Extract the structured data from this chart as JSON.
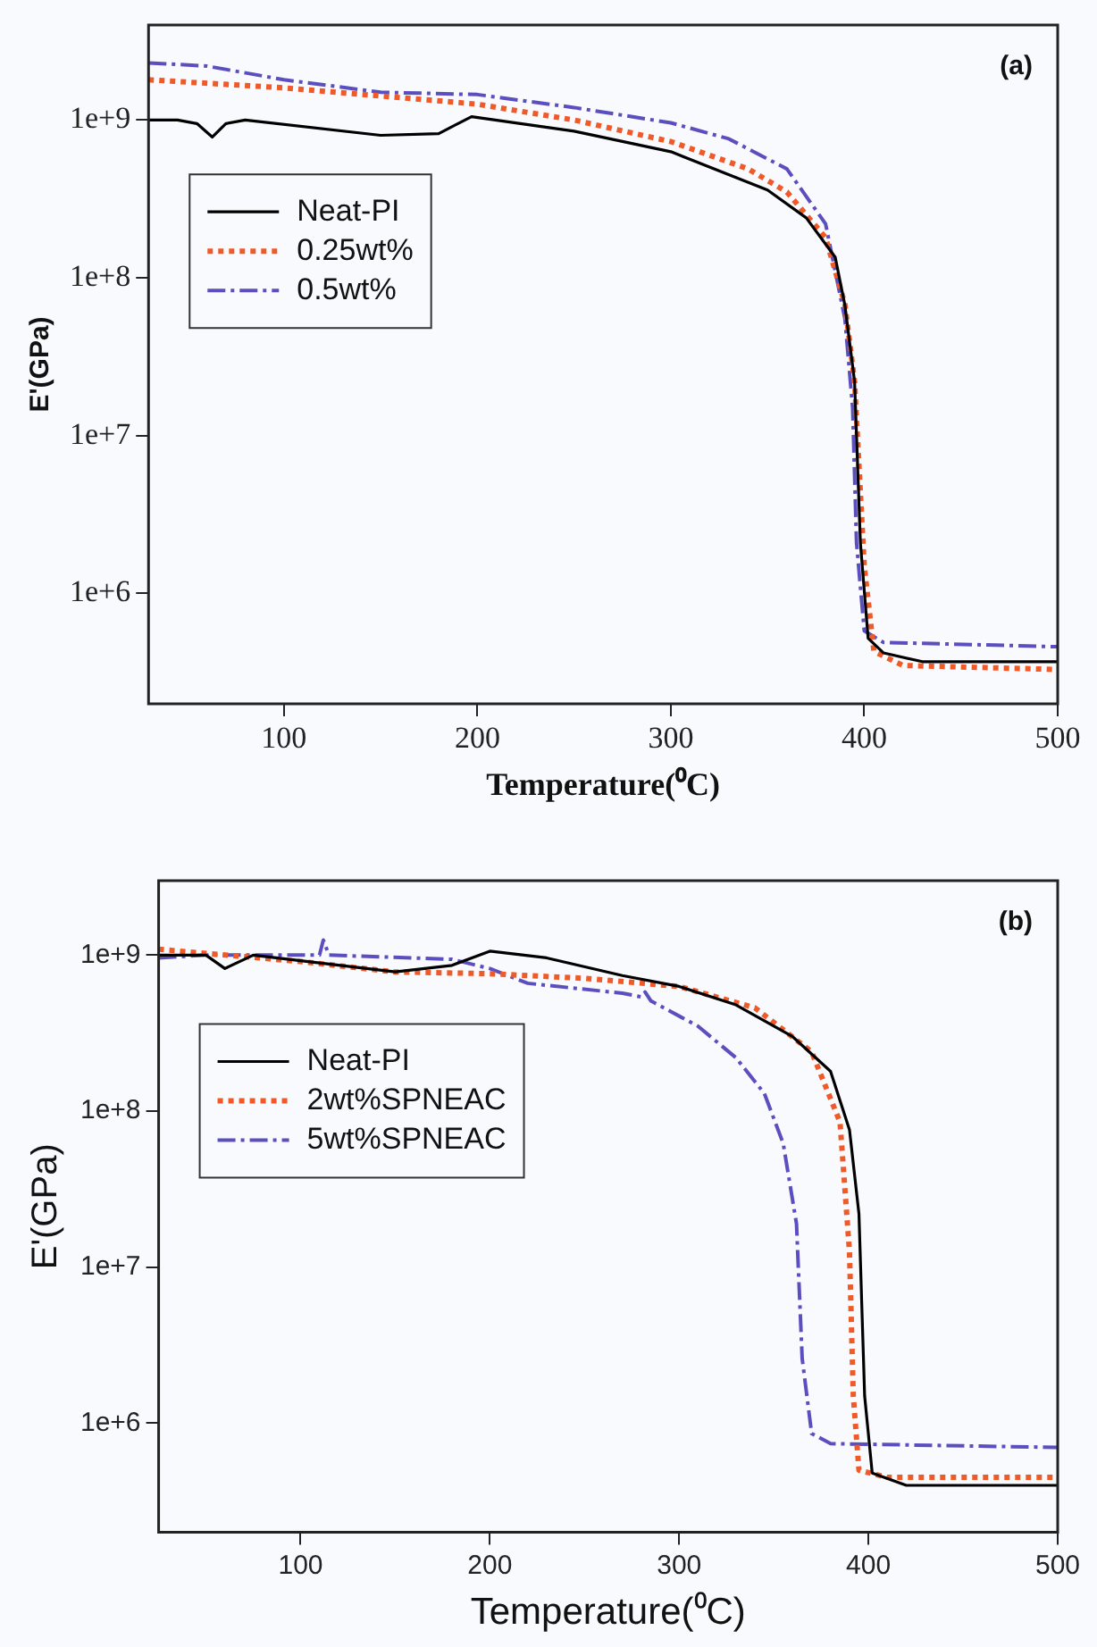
{
  "chart_data": [
    {
      "type": "line",
      "title": "(a)",
      "xlabel": "Temperature(⁰C)",
      "ylabel": "E'(GPa)",
      "log": "y",
      "grid": false,
      "legend": "left",
      "marker": "none",
      "xlim": [
        30,
        500
      ],
      "xticks": [
        100,
        200,
        300,
        400,
        500
      ],
      "ylim": [
        200000,
        4000000000
      ],
      "yticks": [
        {
          "value": 1000000,
          "label": "1e+6"
        },
        {
          "value": 10000000,
          "label": "1e+7"
        },
        {
          "value": 100000000,
          "label": "1e+8"
        },
        {
          "value": 1000000000,
          "label": "1e+9"
        }
      ],
      "series": [
        {
          "name": "Neat-PI",
          "color": "#000000",
          "line_style": "solid",
          "x": [
            30,
            45,
            55,
            63,
            70,
            80,
            150,
            180,
            190,
            197,
            250,
            300,
            350,
            370,
            385,
            390,
            395,
            398,
            402,
            410,
            430,
            500
          ],
          "values": [
            1000000000,
            1000000000,
            950000000,
            780000000,
            950000000,
            1000000000,
            800000000,
            820000000,
            950000000,
            1050000000,
            850000000,
            630000000,
            360000000,
            240000000,
            135000000,
            67000000,
            22000000,
            2100000,
            520000,
            420000,
            370000,
            370000
          ]
        },
        {
          "name": "0.25wt%",
          "color": "#f05a28",
          "line_style": "dotted",
          "x": [
            30,
            100,
            200,
            250,
            300,
            340,
            360,
            380,
            390,
            395,
            400,
            405,
            420,
            500
          ],
          "values": [
            1800000000,
            1600000000,
            1260000000,
            1000000000,
            730000000,
            490000000,
            350000000,
            180000000,
            68000000,
            22000000,
            1500000,
            430000,
            350000,
            330000
          ]
        },
        {
          "name": "0.5wt%",
          "color": "#5b4fc0",
          "line_style": "dashed",
          "x": [
            30,
            60,
            100,
            150,
            200,
            250,
            300,
            330,
            360,
            380,
            390,
            394,
            396,
            400,
            410,
            500
          ],
          "values": [
            2300000000,
            2200000000,
            1800000000,
            1500000000,
            1450000000,
            1200000000,
            960000000,
            760000000,
            490000000,
            220000000,
            55000000,
            15000000,
            2100000,
            580000,
            490000,
            460000
          ]
        }
      ]
    },
    {
      "type": "line",
      "title": "(b)",
      "xlabel": "Temperature(⁰C)",
      "ylabel": "E'(GPa)",
      "log": "y",
      "grid": false,
      "legend": "left",
      "marker": "none",
      "xlim": [
        25,
        500
      ],
      "xticks": [
        100,
        200,
        300,
        400,
        500
      ],
      "ylim": [
        200000,
        3000000000
      ],
      "yticks": [
        {
          "value": 1000000,
          "label": "1e+6"
        },
        {
          "value": 10000000,
          "label": "1e+7"
        },
        {
          "value": 100000000,
          "label": "1e+8"
        },
        {
          "value": 1000000000,
          "label": "1e+9"
        }
      ],
      "series": [
        {
          "name": "Neat-PI",
          "color": "#000000",
          "line_style": "solid",
          "x": [
            25,
            50,
            60,
            75,
            150,
            180,
            200,
            230,
            270,
            300,
            330,
            360,
            380,
            390,
            395,
            398,
            402,
            420,
            500
          ],
          "values": [
            1000000000,
            1000000000,
            820000000,
            1000000000,
            780000000,
            860000000,
            1060000000,
            960000000,
            740000000,
            630000000,
            480000000,
            300000000,
            180000000,
            76000000,
            22000000,
            1500000,
            480000,
            400000,
            400000
          ]
        },
        {
          "name": "2wt%SPNEAC",
          "color": "#f05a28",
          "line_style": "dotted",
          "x": [
            25,
            100,
            150,
            200,
            250,
            300,
            340,
            370,
            385,
            390,
            392,
            395,
            410,
            500
          ],
          "values": [
            1090000000,
            910000000,
            780000000,
            760000000,
            710000000,
            630000000,
            460000000,
            240000000,
            85000000,
            12500000,
            1500000,
            500000,
            450000,
            450000
          ]
        },
        {
          "name": "5wt%SPNEAC",
          "color": "#5b4fc0",
          "line_style": "dashed",
          "x": [
            25,
            50,
            110,
            112,
            115,
            180,
            200,
            220,
            270,
            280,
            282,
            285,
            310,
            330,
            345,
            355,
            362,
            365,
            370,
            380,
            500
          ],
          "values": [
            960000000,
            1000000000,
            1000000000,
            1250000000,
            1000000000,
            940000000,
            820000000,
            660000000,
            570000000,
            540000000,
            580000000,
            510000000,
            350000000,
            220000000,
            130000000,
            62000000,
            19000000,
            2600000,
            860000,
            740000,
            700000
          ]
        }
      ]
    }
  ]
}
